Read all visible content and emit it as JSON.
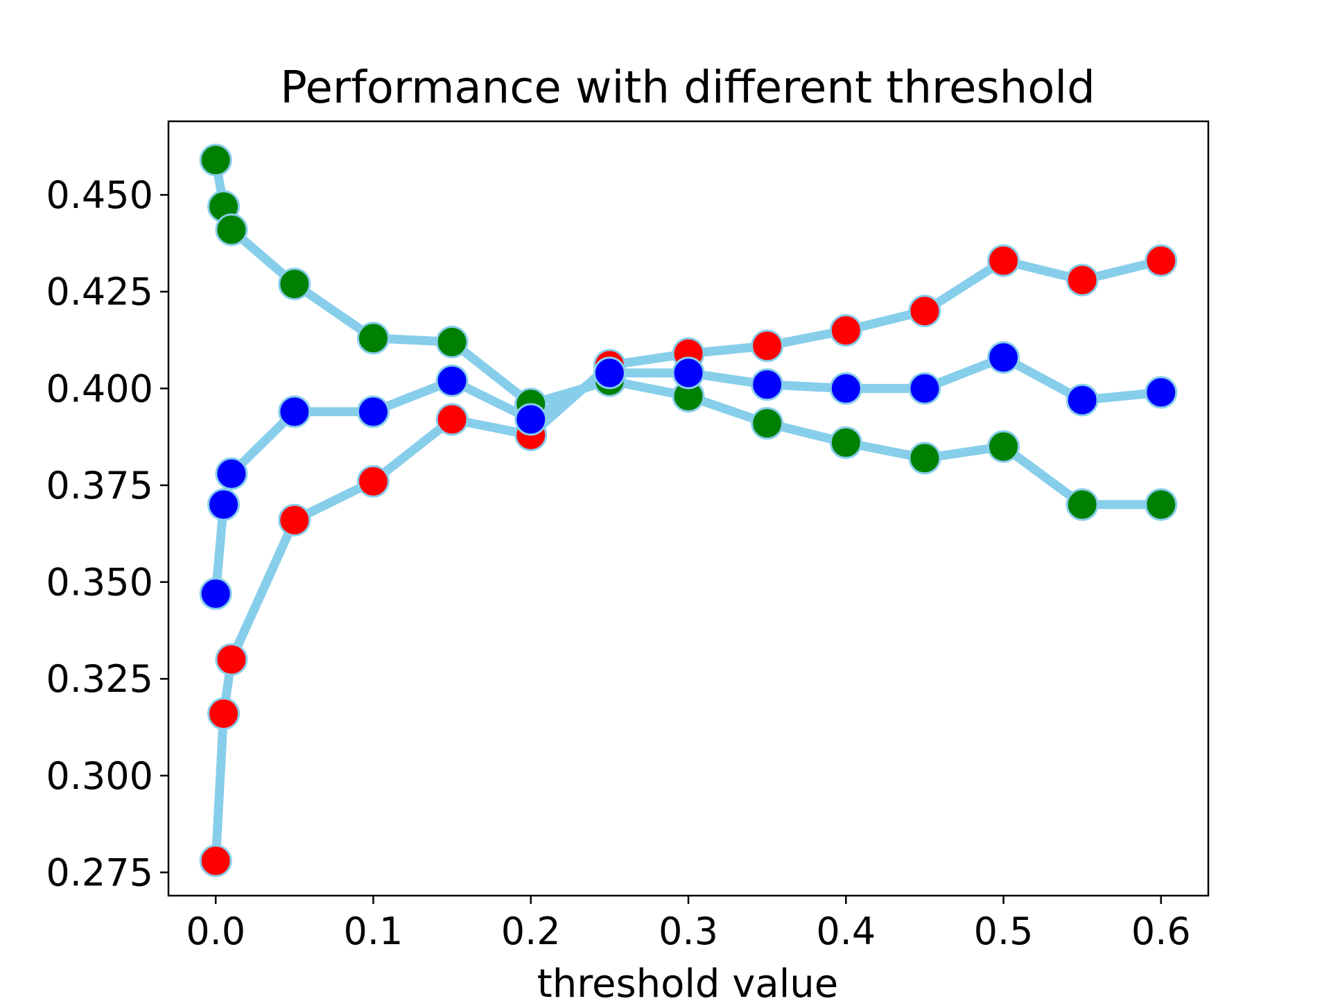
{
  "chart_data": {
    "type": "line",
    "title": "Performance with different threshold",
    "xlabel": "threshold value",
    "ylabel": "",
    "xlim": [
      -0.03,
      0.63
    ],
    "ylim": [
      0.269,
      0.469
    ],
    "xticks": [
      0.0,
      0.1,
      0.2,
      0.3,
      0.4,
      0.5,
      0.6
    ],
    "xtick_labels": [
      "0.0",
      "0.1",
      "0.2",
      "0.3",
      "0.4",
      "0.5",
      "0.6"
    ],
    "yticks": [
      0.275,
      0.3,
      0.325,
      0.35,
      0.375,
      0.4,
      0.425,
      0.45
    ],
    "ytick_labels": [
      "0.275",
      "0.300",
      "0.325",
      "0.350",
      "0.375",
      "0.400",
      "0.425",
      "0.450"
    ],
    "grid": false,
    "legend": "none",
    "line_color": "#87CEEB",
    "marker_edge_color": "#87CEEB",
    "x": [
      0.0,
      0.005,
      0.01,
      0.05,
      0.1,
      0.15,
      0.2,
      0.25,
      0.3,
      0.35,
      0.4,
      0.45,
      0.5,
      0.55,
      0.6
    ],
    "series": [
      {
        "marker_color": "#008000",
        "values": [
          0.459,
          0.447,
          0.441,
          0.427,
          0.413,
          0.412,
          0.396,
          0.402,
          0.398,
          0.391,
          0.386,
          0.382,
          0.385,
          0.37,
          0.37
        ]
      },
      {
        "marker_color": "#FF0000",
        "values": [
          0.278,
          0.316,
          0.33,
          0.366,
          0.376,
          0.392,
          0.388,
          0.406,
          0.409,
          0.411,
          0.415,
          0.42,
          0.433,
          0.428,
          0.433
        ]
      },
      {
        "marker_color": "#0000FF",
        "values": [
          0.347,
          0.37,
          0.378,
          0.394,
          0.394,
          0.402,
          0.392,
          0.404,
          0.404,
          0.401,
          0.4,
          0.4,
          0.408,
          0.397,
          0.399
        ]
      }
    ]
  }
}
